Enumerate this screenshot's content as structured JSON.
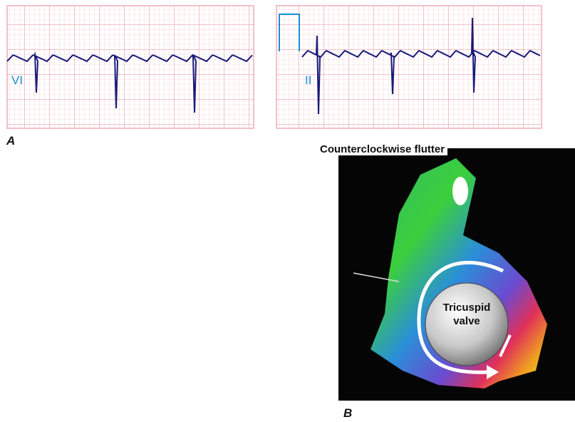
{
  "panel_a": {
    "label": "A",
    "leads": [
      "VI",
      "II"
    ]
  },
  "panel_b": {
    "label": "B",
    "title": "Counterclockwise flutter",
    "structure": "Tricuspid valve"
  }
}
